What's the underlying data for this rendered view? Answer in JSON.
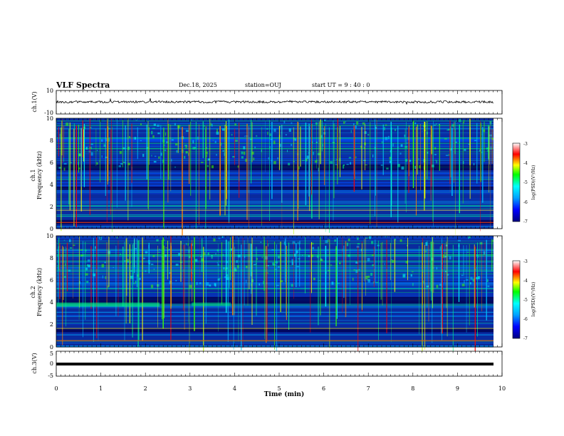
{
  "header": {
    "title": "VLF Spectra",
    "date": "Dec.18, 2025",
    "station": "station=OUJ",
    "start": "start  UT =   9 : 40 : 0"
  },
  "chart_data": [
    {
      "type": "line",
      "panel": "ch1-waveform",
      "ylabel": "ch.1(V)",
      "ylim": [
        -10,
        10
      ],
      "yticks": [
        "10",
        "-10"
      ],
      "xlim": [
        0,
        10
      ],
      "color": "#000000"
    },
    {
      "type": "heatmap",
      "panel": "ch1-spectrogram",
      "ylabel_top": "ch.1",
      "ylabel": "Frequency (kHz)",
      "ylim": [
        0,
        10
      ],
      "yticks": [
        "0",
        "2",
        "4",
        "6",
        "8",
        "10"
      ],
      "xlim": [
        0,
        10
      ],
      "colorbar": {
        "label": "log(PSD)(V²/Hz)",
        "range": [
          -7,
          -3
        ],
        "ticks": [
          "-3",
          "-4",
          "-5",
          "-6",
          "-7"
        ],
        "colors": [
          "#000080",
          "#0000ff",
          "#00a0ff",
          "#00ffff",
          "#00ff00",
          "#ffff00",
          "#ff0000",
          "#ffffff"
        ]
      }
    },
    {
      "type": "heatmap",
      "panel": "ch2-spectrogram",
      "ylabel_top": "ch.2",
      "ylabel": "Frequency (kHz)",
      "ylim": [
        0,
        10
      ],
      "yticks": [
        "0",
        "2",
        "4",
        "6",
        "8",
        "10"
      ],
      "xlim": [
        0,
        10
      ],
      "colorbar": {
        "label": "log(PSD)(V²/Hz)",
        "range": [
          -7,
          -3
        ],
        "ticks": [
          "-3",
          "-4",
          "-5",
          "-6",
          "-7"
        ],
        "colors": [
          "#000080",
          "#0000ff",
          "#00a0ff",
          "#00ffff",
          "#00ff00",
          "#ffff00",
          "#ff0000",
          "#ffffff"
        ]
      }
    },
    {
      "type": "line",
      "panel": "ch3-waveform",
      "ylabel": "ch.3(V)",
      "ylim": [
        -5,
        5
      ],
      "yticks": [
        "5",
        "0",
        "-5"
      ],
      "xlim": [
        0,
        10
      ],
      "xlabel": "Time (min)",
      "xticks": [
        "0",
        "1",
        "2",
        "3",
        "4",
        "5",
        "6",
        "7",
        "8",
        "9",
        "10"
      ],
      "color": "#000000"
    }
  ]
}
